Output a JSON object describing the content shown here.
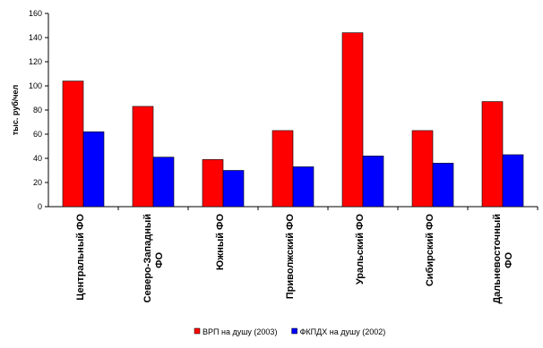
{
  "chart_data": {
    "type": "bar",
    "title": "",
    "xlabel": "",
    "ylabel": "тыс. руб/чел",
    "ylim": [
      0,
      160
    ],
    "yticks": [
      0,
      20,
      40,
      60,
      80,
      100,
      120,
      140,
      160
    ],
    "grid": false,
    "legend_position": "bottom",
    "categories": [
      "Центральный ФО",
      "Северо-Западный ФО",
      "Южный ФО",
      "Приволжский ФО",
      "Уральский ФО",
      "Сибирский ФО",
      "Дальневосточный ФО"
    ],
    "series": [
      {
        "name": "ВРП на душу (2003)",
        "color": "#ff0000",
        "values": [
          104,
          83,
          39,
          63,
          144,
          63,
          87
        ]
      },
      {
        "name": "ФКПДХ на душу (2002)",
        "color": "#0000ff",
        "values": [
          62,
          41,
          30,
          33,
          42,
          36,
          43
        ]
      }
    ]
  }
}
